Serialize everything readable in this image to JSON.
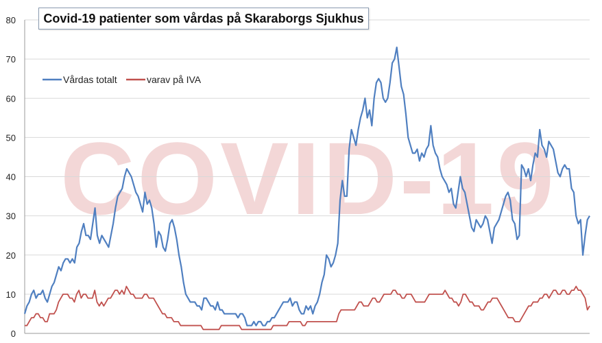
{
  "chart_data": {
    "type": "line",
    "title": "Covid-19 patienter som vårdas på Skaraborgs Sjukhus",
    "watermark": "COVID-19",
    "xlabel": "",
    "ylabel": "",
    "ylim": [
      0,
      80
    ],
    "yticks": [
      "0",
      "10",
      "20",
      "30",
      "40",
      "50",
      "60",
      "70",
      "80"
    ],
    "grid": true,
    "legend_position": "top-left",
    "colors": {
      "total": "#4f7fc0",
      "iva": "#c0504d",
      "grid": "#d9d9d9",
      "watermark": "#f2d3d3"
    },
    "series": [
      {
        "name": "Vårdas totalt",
        "color": "#4f7fc0",
        "values": [
          5,
          7,
          8,
          10,
          11,
          9,
          10,
          10,
          11,
          9,
          8,
          10,
          12,
          13,
          15,
          17,
          16,
          18,
          19,
          19,
          18,
          19,
          18,
          22,
          23,
          26,
          28,
          25,
          25,
          24,
          28,
          32,
          25,
          23,
          25,
          24,
          23,
          22,
          25,
          28,
          32,
          35,
          36,
          37,
          40,
          42,
          41,
          40,
          38,
          36,
          35,
          33,
          31,
          36,
          33,
          34,
          32,
          28,
          22,
          26,
          25,
          22,
          21,
          24,
          28,
          29,
          27,
          24,
          20,
          17,
          13,
          10,
          9,
          8,
          8,
          8,
          7,
          7,
          6,
          9,
          9,
          8,
          7,
          7,
          6,
          8,
          6,
          6,
          5,
          5,
          5,
          5,
          5,
          5,
          4,
          5,
          5,
          4,
          2,
          2,
          2,
          3,
          2,
          3,
          3,
          2,
          2,
          3,
          3,
          4,
          4,
          5,
          6,
          7,
          8,
          8,
          8,
          9,
          7,
          8,
          8,
          6,
          5,
          5,
          7,
          6,
          7,
          5,
          7,
          8,
          10,
          13,
          15,
          20,
          19,
          17,
          18,
          20,
          23,
          34,
          39,
          35,
          35,
          47,
          52,
          50,
          48,
          52,
          55,
          57,
          60,
          55,
          57,
          53,
          60,
          64,
          65,
          64,
          60,
          59,
          60,
          64,
          69,
          70,
          73,
          68,
          63,
          61,
          56,
          50,
          48,
          46,
          46,
          47,
          44,
          46,
          45,
          47,
          48,
          53,
          48,
          46,
          45,
          42,
          40,
          39,
          38,
          36,
          37,
          33,
          32,
          36,
          40,
          37,
          36,
          33,
          30,
          27,
          26,
          29,
          28,
          27,
          28,
          30,
          29,
          26,
          23,
          27,
          28,
          29,
          31,
          33,
          35,
          36,
          34,
          29,
          28,
          24,
          25,
          43,
          42,
          40,
          42,
          39,
          43,
          46,
          45,
          52,
          48,
          47,
          45,
          49,
          48,
          47,
          44,
          41,
          40,
          42,
          43,
          42,
          42,
          37,
          36,
          30,
          28,
          29,
          20,
          25,
          29,
          30
        ]
      },
      {
        "name": "varav på IVA",
        "color": "#c0504d",
        "values": [
          2,
          2,
          3,
          4,
          4,
          5,
          5,
          4,
          4,
          3,
          3,
          5,
          5,
          5,
          6,
          8,
          9,
          10,
          10,
          10,
          9,
          9,
          8,
          10,
          11,
          9,
          10,
          10,
          9,
          9,
          9,
          11,
          8,
          7,
          8,
          7,
          8,
          9,
          9,
          10,
          11,
          11,
          10,
          11,
          10,
          12,
          11,
          10,
          10,
          9,
          9,
          9,
          9,
          10,
          10,
          9,
          9,
          9,
          8,
          7,
          6,
          5,
          5,
          4,
          4,
          4,
          3,
          3,
          3,
          2,
          2,
          2,
          2,
          2,
          2,
          2,
          2,
          2,
          2,
          1,
          1,
          1,
          1,
          1,
          1,
          1,
          1,
          2,
          2,
          2,
          2,
          2,
          2,
          2,
          2,
          2,
          1,
          1,
          1,
          1,
          1,
          1,
          1,
          1,
          1,
          1,
          1,
          1,
          1,
          1,
          2,
          2,
          2,
          2,
          2,
          2,
          2,
          3,
          3,
          3,
          3,
          3,
          3,
          2,
          2,
          3,
          3,
          3,
          3,
          3,
          3,
          3,
          3,
          3,
          3,
          3,
          3,
          3,
          3,
          5,
          6,
          6,
          6,
          6,
          6,
          6,
          6,
          7,
          8,
          8,
          7,
          7,
          7,
          8,
          9,
          9,
          8,
          8,
          9,
          10,
          10,
          10,
          10,
          11,
          11,
          10,
          10,
          9,
          9,
          10,
          10,
          10,
          9,
          8,
          8,
          8,
          8,
          8,
          9,
          10,
          10,
          10,
          10,
          10,
          10,
          10,
          11,
          10,
          9,
          9,
          8,
          8,
          7,
          8,
          10,
          10,
          9,
          8,
          8,
          7,
          7,
          7,
          6,
          6,
          7,
          8,
          8,
          9,
          9,
          9,
          8,
          7,
          6,
          5,
          4,
          4,
          4,
          3,
          3,
          3,
          4,
          5,
          6,
          7,
          7,
          8,
          8,
          8,
          9,
          9,
          10,
          10,
          9,
          10,
          11,
          11,
          10,
          10,
          11,
          11,
          10,
          10,
          11,
          11,
          12,
          11,
          11,
          10,
          9,
          6,
          7
        ]
      }
    ]
  }
}
